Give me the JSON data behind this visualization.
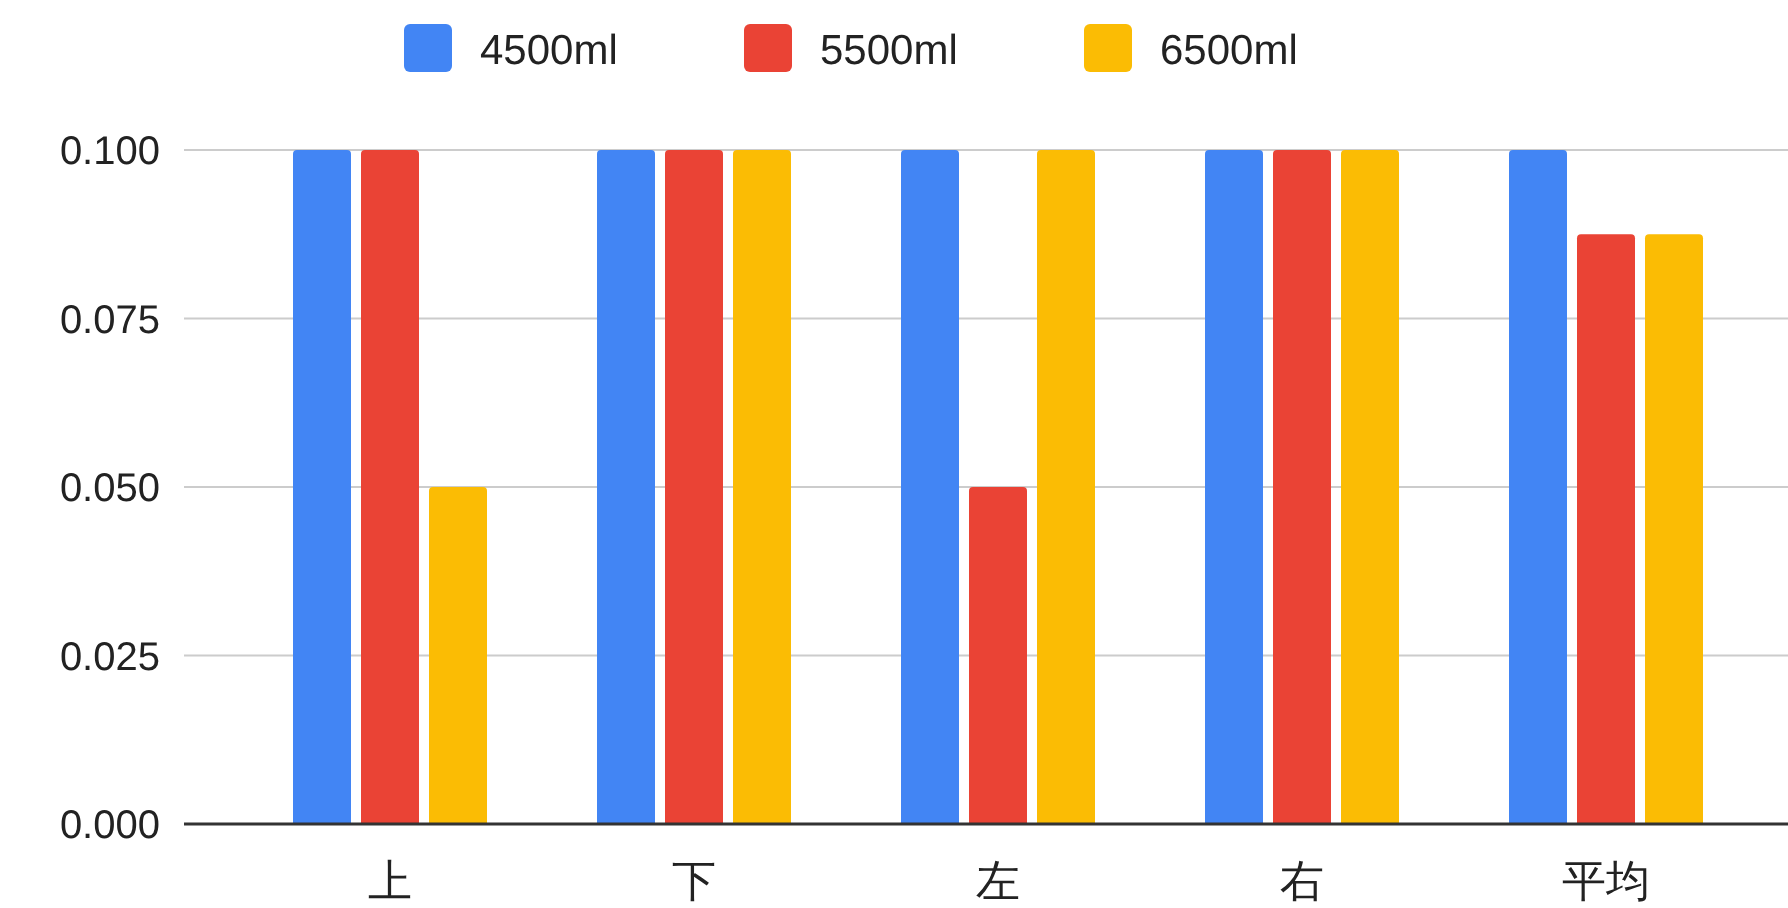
{
  "chart_data": {
    "type": "bar",
    "categories": [
      "上",
      "下",
      "左",
      "右",
      "平均"
    ],
    "series": [
      {
        "name": "4500ml",
        "color": "#4285f4",
        "values": [
          0.1,
          0.1,
          0.1,
          0.1,
          0.1
        ]
      },
      {
        "name": "5500ml",
        "color": "#ea4335",
        "values": [
          0.1,
          0.1,
          0.05,
          0.1,
          0.0875
        ]
      },
      {
        "name": "6500ml",
        "color": "#fbbc04",
        "values": [
          0.05,
          0.1,
          0.1,
          0.1,
          0.0875
        ]
      }
    ],
    "ylim": [
      0,
      0.1
    ],
    "yticks": [
      {
        "value": 0,
        "label": "0.000"
      },
      {
        "value": 0.025,
        "label": "0.025"
      },
      {
        "value": 0.05,
        "label": "0.050"
      },
      {
        "value": 0.075,
        "label": "0.075"
      },
      {
        "value": 0.1,
        "label": "0.100"
      }
    ],
    "grid": "y",
    "legend": "top"
  }
}
